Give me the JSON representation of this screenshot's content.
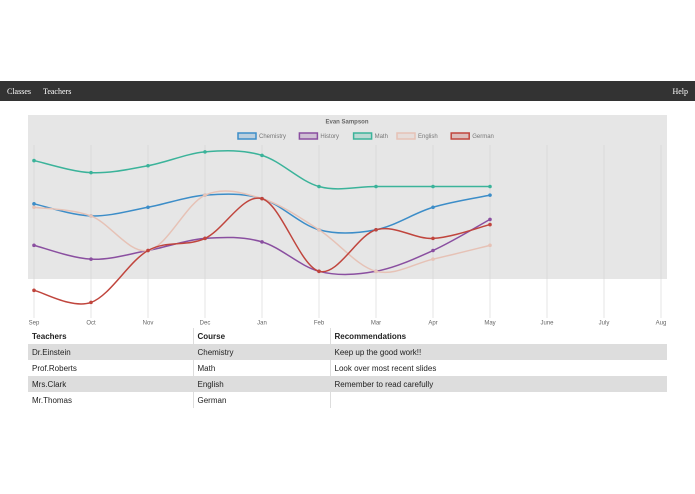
{
  "nav": {
    "left": [
      "Classes",
      "Teachers"
    ],
    "right": "Help"
  },
  "chart_data": {
    "type": "line",
    "title": "Evan Sampson",
    "categories": [
      "Sep",
      "Oct",
      "Nov",
      "Dec",
      "Jan",
      "Feb",
      "Mar",
      "Apr",
      "May",
      "June",
      "July",
      "Aug"
    ],
    "ylim": [
      0,
      100
    ],
    "grid": true,
    "legend": "top",
    "series": [
      {
        "name": "Chemistry",
        "color": "#3c8dc8",
        "values": [
          66,
          59,
          64,
          71,
          69,
          51,
          51,
          64,
          71,
          null,
          null,
          null
        ]
      },
      {
        "name": "History",
        "color": "#8a4fa0",
        "values": [
          42,
          34,
          39,
          46,
          44,
          27,
          27,
          39,
          57,
          null,
          null,
          null
        ]
      },
      {
        "name": "Math",
        "color": "#3bb39a",
        "values": [
          91,
          84,
          88,
          96,
          94,
          76,
          76,
          76,
          76,
          null,
          null,
          null
        ]
      },
      {
        "name": "English",
        "color": "#e6c2b6",
        "values": [
          64,
          59,
          39,
          71,
          69,
          51,
          27,
          34,
          42,
          null,
          null,
          null
        ]
      },
      {
        "name": "German",
        "color": "#c0453d",
        "values": [
          16,
          9,
          39,
          46,
          69,
          27,
          51,
          46,
          54,
          null,
          null,
          null
        ]
      }
    ]
  },
  "table": {
    "header": [
      "Teachers",
      "Course",
      "Recommendations"
    ],
    "rows": [
      [
        "Dr.Einstein",
        "Chemistry",
        "Keep up the good work!!"
      ],
      [
        "Prof.Roberts",
        "Math",
        "Look over most recent slides"
      ],
      [
        "Mrs.Clark",
        "English",
        "Remember to read carefully"
      ],
      [
        "Mr.Thomas",
        "German"
      ]
    ]
  }
}
